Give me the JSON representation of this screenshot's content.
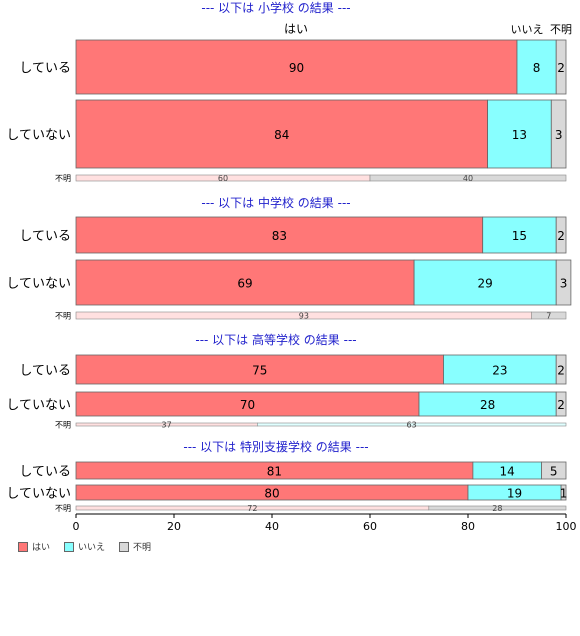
{
  "chart_data": {
    "type": "bar",
    "orientation": "horizontal",
    "stacked": true,
    "xlim": [
      0,
      100
    ],
    "xticks": [
      "0",
      "20",
      "40",
      "60",
      "80",
      "100"
    ],
    "top_labels": [
      "はい",
      "いいえ",
      "不明"
    ],
    "series": [
      {
        "name": "はい",
        "color": "#FF7777"
      },
      {
        "name": "いいえ",
        "color": "#88FFFF"
      },
      {
        "name": "不明",
        "color": "#D9D9D9"
      }
    ],
    "panels": [
      {
        "title": "--- 以下は 小学校 の結果 ---",
        "rows": [
          {
            "label": "している",
            "values": [
              90,
              8,
              2
            ]
          },
          {
            "label": "していない",
            "values": [
              84,
              13,
              3
            ]
          }
        ],
        "fumei": {
          "label": "不明",
          "values": [
            60,
            40
          ]
        }
      },
      {
        "title": "--- 以下は 中学校 の結果 ---",
        "rows": [
          {
            "label": "している",
            "values": [
              83,
              15,
              2
            ]
          },
          {
            "label": "していない",
            "values": [
              69,
              29,
              3
            ]
          }
        ],
        "fumei": {
          "label": "不明",
          "values": [
            93,
            7
          ]
        }
      },
      {
        "title": "--- 以下は 高等学校 の結果 ---",
        "rows": [
          {
            "label": "している",
            "values": [
              75,
              23,
              2
            ]
          },
          {
            "label": "していない",
            "values": [
              70,
              28,
              2
            ]
          }
        ],
        "fumei": {
          "label": "不明",
          "values": [
            37,
            63
          ]
        }
      },
      {
        "title": "--- 以下は 特別支援学校 の結果 ---",
        "rows": [
          {
            "label": "している",
            "values": [
              81,
              14,
              5
            ]
          },
          {
            "label": "していない",
            "values": [
              80,
              19,
              1
            ]
          }
        ],
        "fumei": {
          "label": "不明",
          "values": [
            72,
            28
          ]
        }
      }
    ]
  },
  "legend": {
    "items": [
      {
        "label": "はい",
        "color": "#FF7777"
      },
      {
        "label": "いいえ",
        "color": "#88FFFF"
      },
      {
        "label": "不明",
        "color": "#D9D9D9"
      }
    ]
  }
}
